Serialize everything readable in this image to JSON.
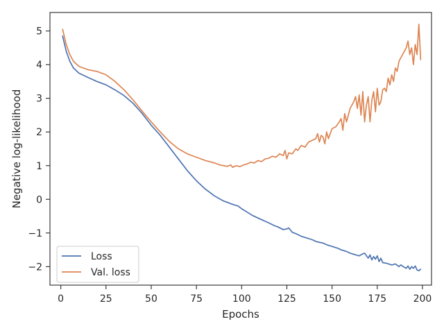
{
  "chart_data": {
    "type": "line",
    "title": "",
    "xlabel": "Epochs",
    "ylabel": "Negative log-likelihood",
    "xlim": [
      -6,
      205
    ],
    "ylim": [
      -2.55,
      5.55
    ],
    "xticks": [
      0,
      25,
      50,
      75,
      100,
      125,
      150,
      175,
      200
    ],
    "yticks": [
      -2,
      -1,
      0,
      1,
      2,
      3,
      4,
      5
    ],
    "xtick_labels": [
      "0",
      "25",
      "50",
      "75",
      "100",
      "125",
      "150",
      "175",
      "200"
    ],
    "ytick_labels": [
      "−2",
      "−1",
      "0",
      "1",
      "2",
      "3",
      "4",
      "5"
    ],
    "grid": false,
    "legend": {
      "position": "lower-left"
    },
    "series": [
      {
        "name": "Loss",
        "color": "#4c72b0",
        "x": [
          1,
          3,
          5,
          7,
          10,
          15,
          20,
          25,
          30,
          35,
          40,
          45,
          50,
          55,
          60,
          65,
          70,
          75,
          80,
          85,
          90,
          95,
          98,
          100,
          103,
          106,
          110,
          115,
          118,
          120,
          123,
          125,
          126,
          128,
          130,
          133,
          136,
          139,
          141,
          143,
          145,
          147,
          150,
          153,
          155,
          158,
          160,
          163,
          165,
          167,
          168,
          170,
          171,
          172,
          173,
          174,
          175,
          176,
          177,
          178,
          180,
          183,
          185,
          187,
          188,
          190,
          191,
          192,
          193,
          194,
          195,
          196,
          197,
          198,
          199
        ],
        "y": [
          4.85,
          4.4,
          4.1,
          3.9,
          3.75,
          3.62,
          3.5,
          3.4,
          3.25,
          3.08,
          2.85,
          2.55,
          2.2,
          1.9,
          1.55,
          1.2,
          0.85,
          0.55,
          0.3,
          0.1,
          -0.05,
          -0.15,
          -0.2,
          -0.28,
          -0.38,
          -0.48,
          -0.58,
          -0.7,
          -0.78,
          -0.82,
          -0.9,
          -0.88,
          -0.85,
          -0.98,
          -1.02,
          -1.1,
          -1.15,
          -1.2,
          -1.25,
          -1.28,
          -1.3,
          -1.35,
          -1.4,
          -1.45,
          -1.5,
          -1.55,
          -1.6,
          -1.65,
          -1.68,
          -1.62,
          -1.6,
          -1.75,
          -1.65,
          -1.8,
          -1.7,
          -1.78,
          -1.68,
          -1.85,
          -1.75,
          -1.88,
          -1.9,
          -1.95,
          -1.92,
          -2.0,
          -1.95,
          -2.02,
          -2.05,
          -1.98,
          -2.08,
          -2.0,
          -2.05,
          -1.98,
          -2.1,
          -2.12,
          -2.08
        ]
      },
      {
        "name": "Val. loss",
        "color": "#dd8452",
        "x": [
          1,
          3,
          5,
          7,
          10,
          15,
          20,
          25,
          30,
          35,
          40,
          45,
          50,
          55,
          60,
          65,
          70,
          75,
          80,
          85,
          88,
          90,
          92,
          94,
          95,
          97,
          99,
          101,
          103,
          105,
          107,
          109,
          111,
          113,
          115,
          117,
          119,
          121,
          123,
          124,
          125,
          126,
          128,
          130,
          131,
          133,
          135,
          137,
          139,
          141,
          142,
          143,
          144,
          145,
          146,
          147,
          148,
          150,
          152,
          154,
          155,
          156,
          157,
          158,
          160,
          162,
          163,
          164,
          165,
          166,
          167,
          168,
          169,
          170,
          171,
          172,
          173,
          174,
          175,
          176,
          177,
          178,
          179,
          180,
          181,
          182,
          183,
          184,
          185,
          186,
          187,
          188,
          189,
          190,
          191,
          192,
          193,
          194,
          195,
          196,
          197,
          198,
          199
        ],
        "y": [
          5.05,
          4.6,
          4.3,
          4.1,
          3.95,
          3.85,
          3.8,
          3.7,
          3.5,
          3.25,
          2.95,
          2.62,
          2.3,
          2.0,
          1.72,
          1.5,
          1.35,
          1.25,
          1.15,
          1.08,
          1.02,
          1.0,
          0.98,
          1.02,
          0.95,
          1.0,
          0.97,
          1.02,
          1.05,
          1.1,
          1.08,
          1.15,
          1.12,
          1.2,
          1.22,
          1.28,
          1.25,
          1.35,
          1.3,
          1.45,
          1.2,
          1.38,
          1.35,
          1.5,
          1.45,
          1.6,
          1.55,
          1.7,
          1.75,
          1.8,
          1.95,
          1.7,
          1.9,
          1.85,
          1.65,
          2.0,
          1.8,
          2.1,
          2.15,
          2.3,
          2.4,
          2.05,
          2.55,
          2.3,
          2.7,
          2.9,
          3.05,
          2.7,
          3.1,
          2.5,
          3.2,
          2.3,
          2.8,
          3.05,
          2.3,
          2.95,
          3.2,
          2.6,
          3.3,
          2.8,
          2.9,
          3.25,
          3.3,
          3.2,
          3.6,
          3.4,
          3.7,
          3.5,
          3.9,
          3.8,
          4.1,
          4.2,
          4.3,
          4.4,
          4.5,
          4.7,
          4.3,
          4.5,
          4.0,
          4.6,
          4.3,
          5.2,
          4.15
        ]
      }
    ]
  }
}
